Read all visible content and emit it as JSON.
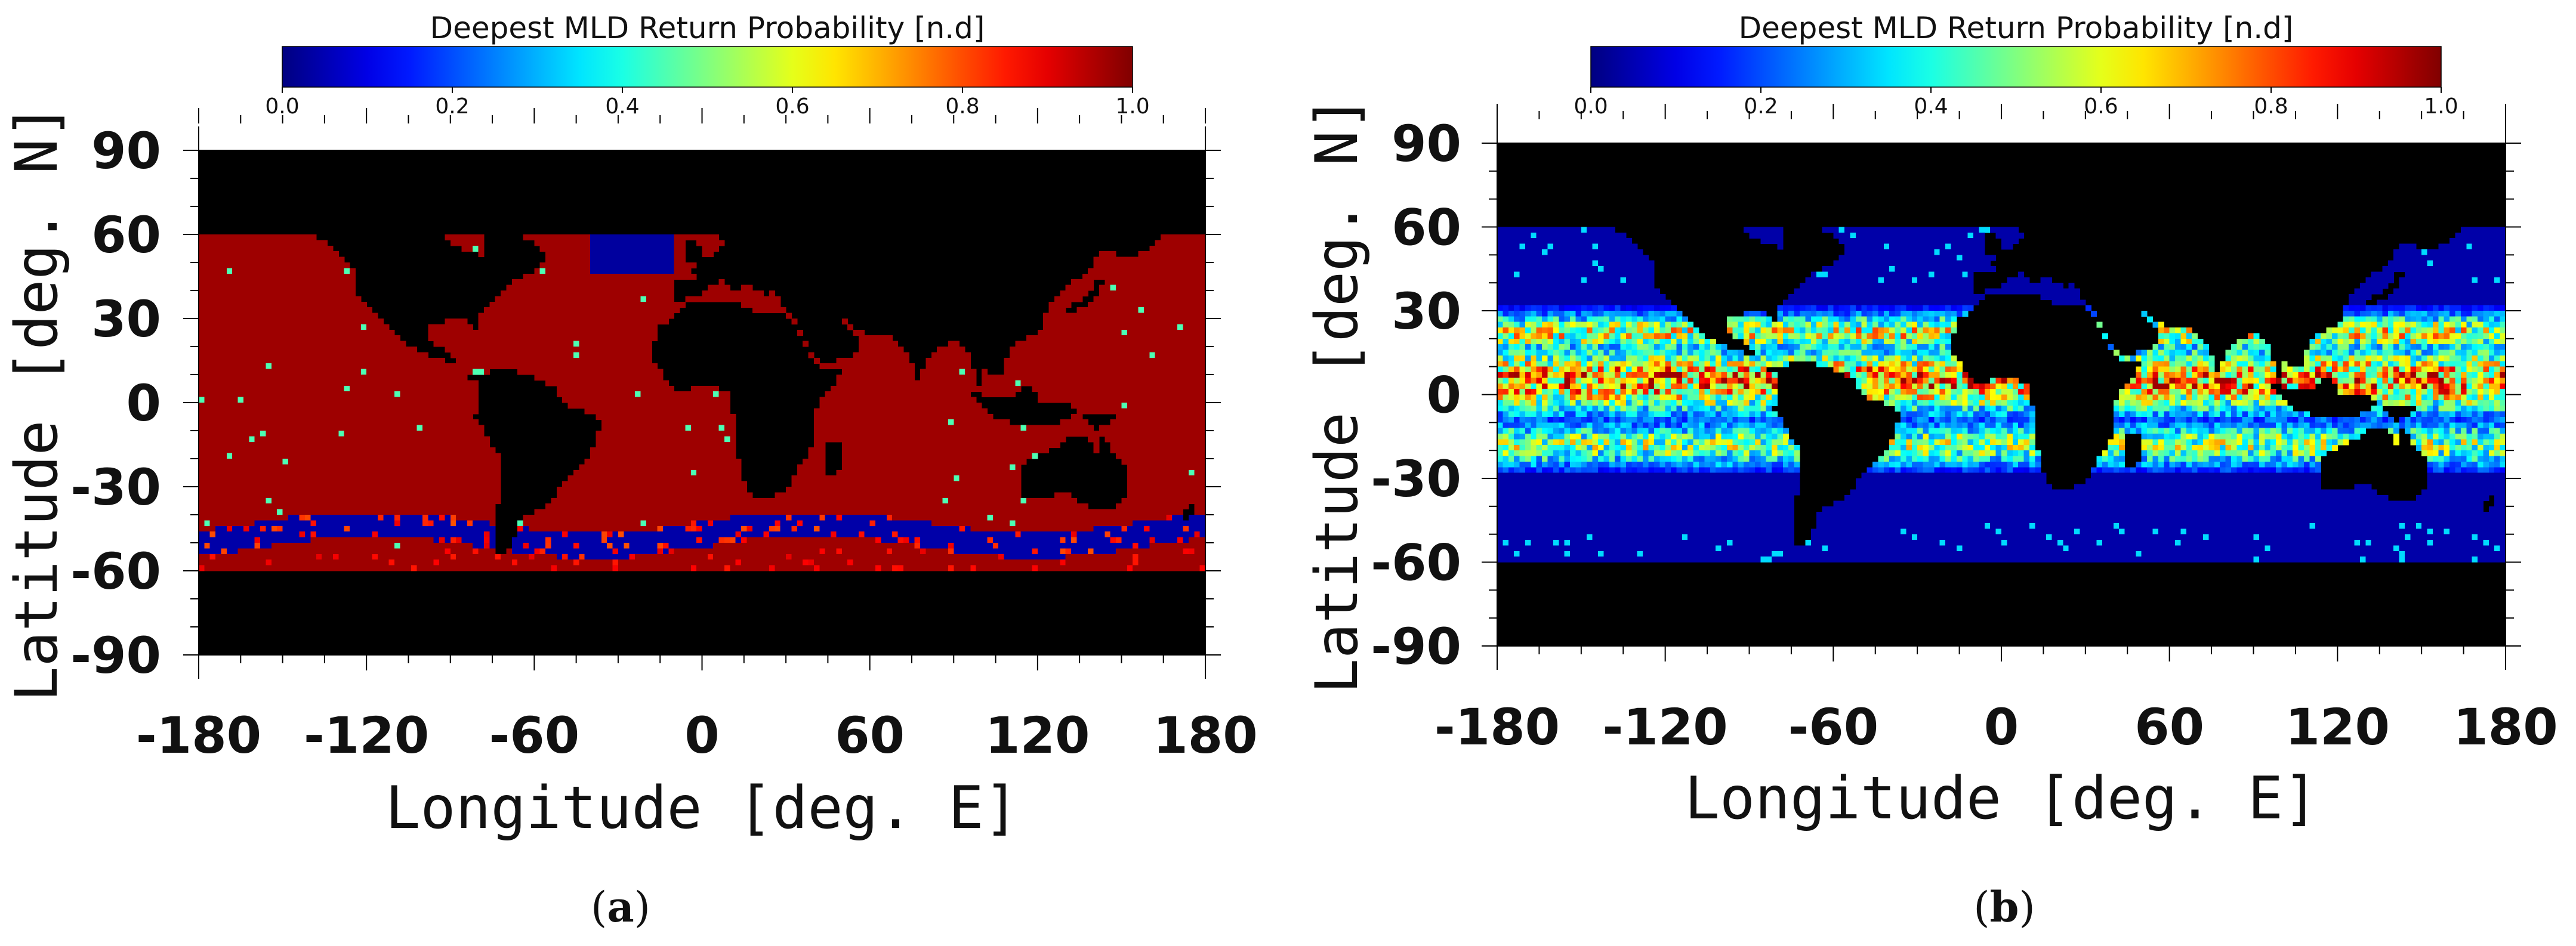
{
  "chart_data": [
    {
      "type": "heatmap",
      "panel_label": "a",
      "title": "Deepest MLD Return Probability [n.d]",
      "xlabel": "Longitude [deg. E]",
      "ylabel": "Latitude [deg. N]",
      "xlim": [
        -180,
        180
      ],
      "ylim": [
        -90,
        90
      ],
      "x_ticks": [
        "-180",
        "-120",
        "-60",
        "0",
        "60",
        "120",
        "180"
      ],
      "y_ticks": [
        "90",
        "60",
        "30",
        "0",
        "-30",
        "-60",
        "-90"
      ],
      "colorbar": {
        "range": [
          0.0,
          1.0
        ],
        "ticks": [
          "0.0",
          "0.2",
          "0.4",
          "0.6",
          "0.8",
          "1.0"
        ],
        "colormap": "jet"
      },
      "land_color": "#000000",
      "no_data_color": "#000000",
      "data_lat_range": [
        -60,
        60
      ],
      "summary": {
        "dominant_value": 0.97,
        "southern_ocean_band_value": 0.05,
        "arctic_patch_value": 0.03
      }
    },
    {
      "type": "heatmap",
      "panel_label": "b",
      "title": "Deepest MLD Return Probability [n.d]",
      "xlabel": "Longitude [deg. E]",
      "ylabel": "Latitude [deg. N]",
      "xlim": [
        -180,
        180
      ],
      "ylim": [
        -90,
        90
      ],
      "x_ticks": [
        "-180",
        "-120",
        "-60",
        "0",
        "60",
        "120",
        "180"
      ],
      "y_ticks": [
        "90",
        "60",
        "30",
        "0",
        "-30",
        "-60",
        "-90"
      ],
      "colorbar": {
        "range": [
          0.0,
          1.0
        ],
        "ticks": [
          "0.0",
          "0.2",
          "0.4",
          "0.6",
          "0.8",
          "1.0"
        ],
        "colormap": "jet"
      },
      "land_color": "#000000",
      "no_data_color": "#000000",
      "data_lat_range": [
        -60,
        60
      ],
      "summary": {
        "background_value": 0.04,
        "tropical_band_values": [
          0.35,
          0.95
        ],
        "max_value": 0.97
      }
    }
  ],
  "captions": [
    {
      "open": "(",
      "letter": "a",
      "close": ")"
    },
    {
      "open": "(",
      "letter": "b",
      "close": ")"
    }
  ]
}
